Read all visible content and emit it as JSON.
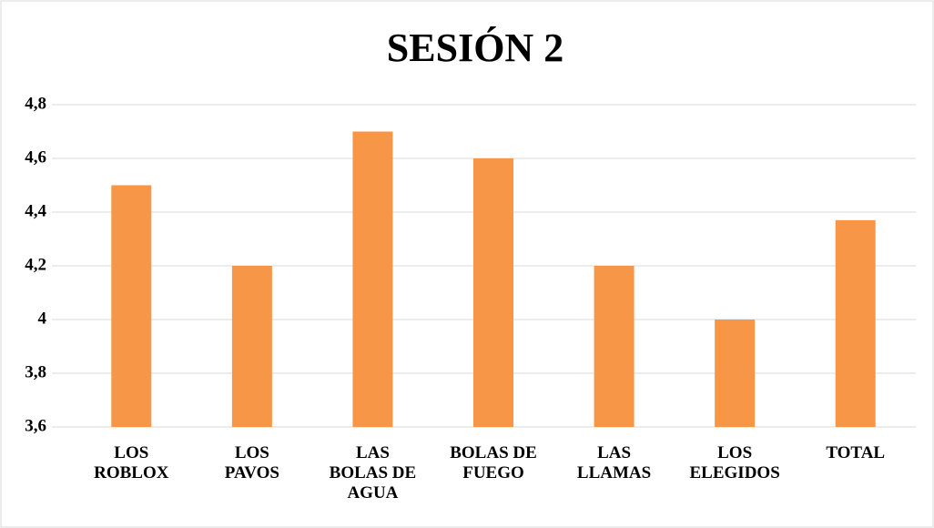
{
  "chart_data": {
    "type": "bar",
    "title": "SESIÓN 2",
    "categories": [
      "LOS ROBLOX",
      "LOS PAVOS",
      "LAS BOLAS DE AGUA",
      "BOLAS DE FUEGO",
      "LAS LLAMAS",
      "LOS ELEGIDOS",
      "TOTAL"
    ],
    "values": [
      4.5,
      4.2,
      4.7,
      4.6,
      4.2,
      4.0,
      4.37
    ],
    "color": "#f79646",
    "ylim": [
      3.6,
      4.8
    ],
    "yticks": [
      {
        "value": 3.6,
        "label": "3,6"
      },
      {
        "value": 3.8,
        "label": "3,8"
      },
      4,
      {
        "value": 4.2,
        "label": "4,2"
      },
      {
        "value": 4.4,
        "label": "4,4"
      },
      {
        "value": 4.6,
        "label": "4,6"
      },
      {
        "value": 4.8,
        "label": "4,8"
      }
    ],
    "grid": true
  }
}
